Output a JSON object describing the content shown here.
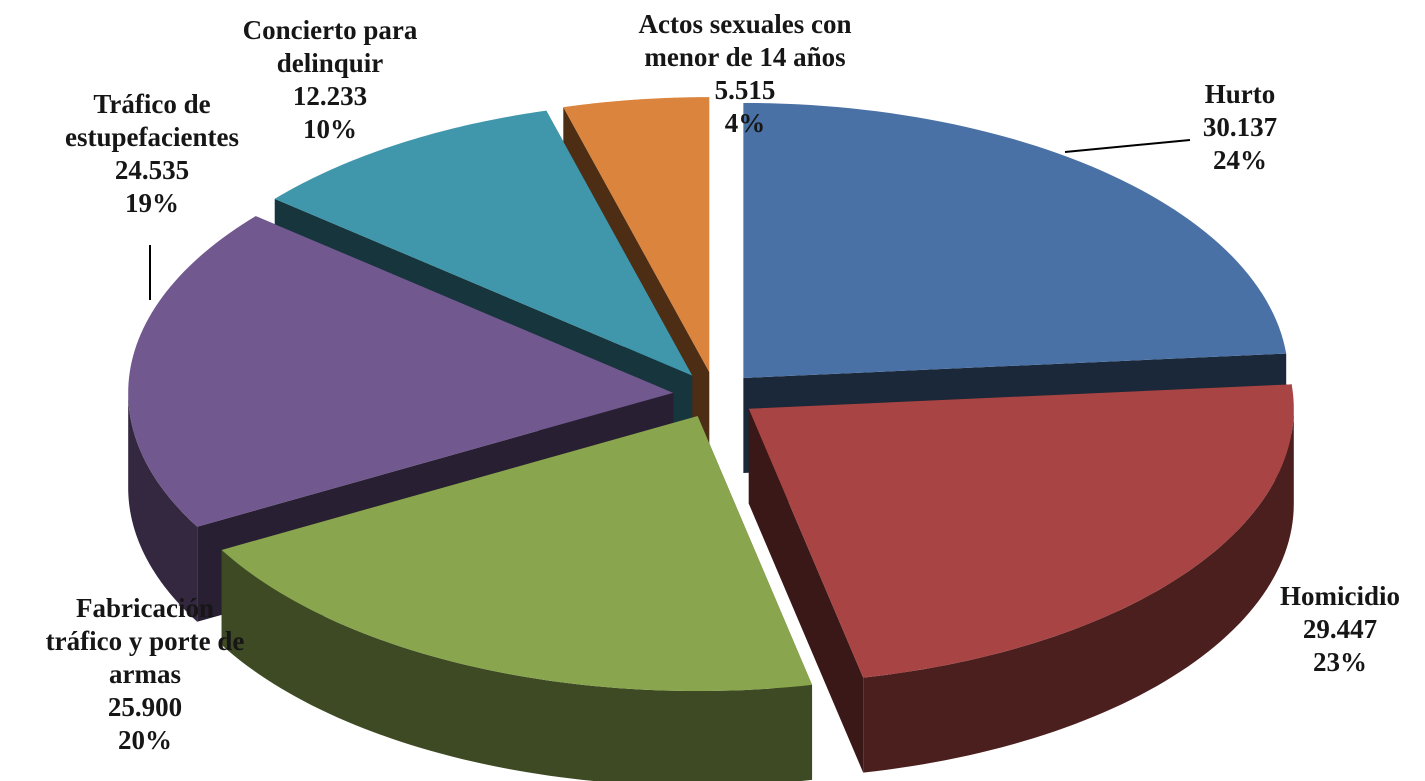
{
  "chart_data": {
    "type": "pie",
    "categories": [
      "Hurto",
      "Homicidio",
      "Fabricación\ntráfico y porte de\narmas",
      "Tráfico de\nestupefacientes",
      "Concierto para\ndelinquir",
      "Actos sexuales con\nmenor de 14 años"
    ],
    "values": [
      30137,
      29447,
      25900,
      24535,
      12233,
      5515
    ],
    "value_labels": [
      "30.137",
      "29.447",
      "25.900",
      "24.535",
      "12.233",
      "5.515"
    ],
    "percent_labels": [
      "24%",
      "23%",
      "20%",
      "19%",
      "10%",
      "4%"
    ],
    "colors": [
      "#4a71a6",
      "#a84544",
      "#89a54e",
      "#71588f",
      "#4097ab",
      "#db843d"
    ]
  }
}
